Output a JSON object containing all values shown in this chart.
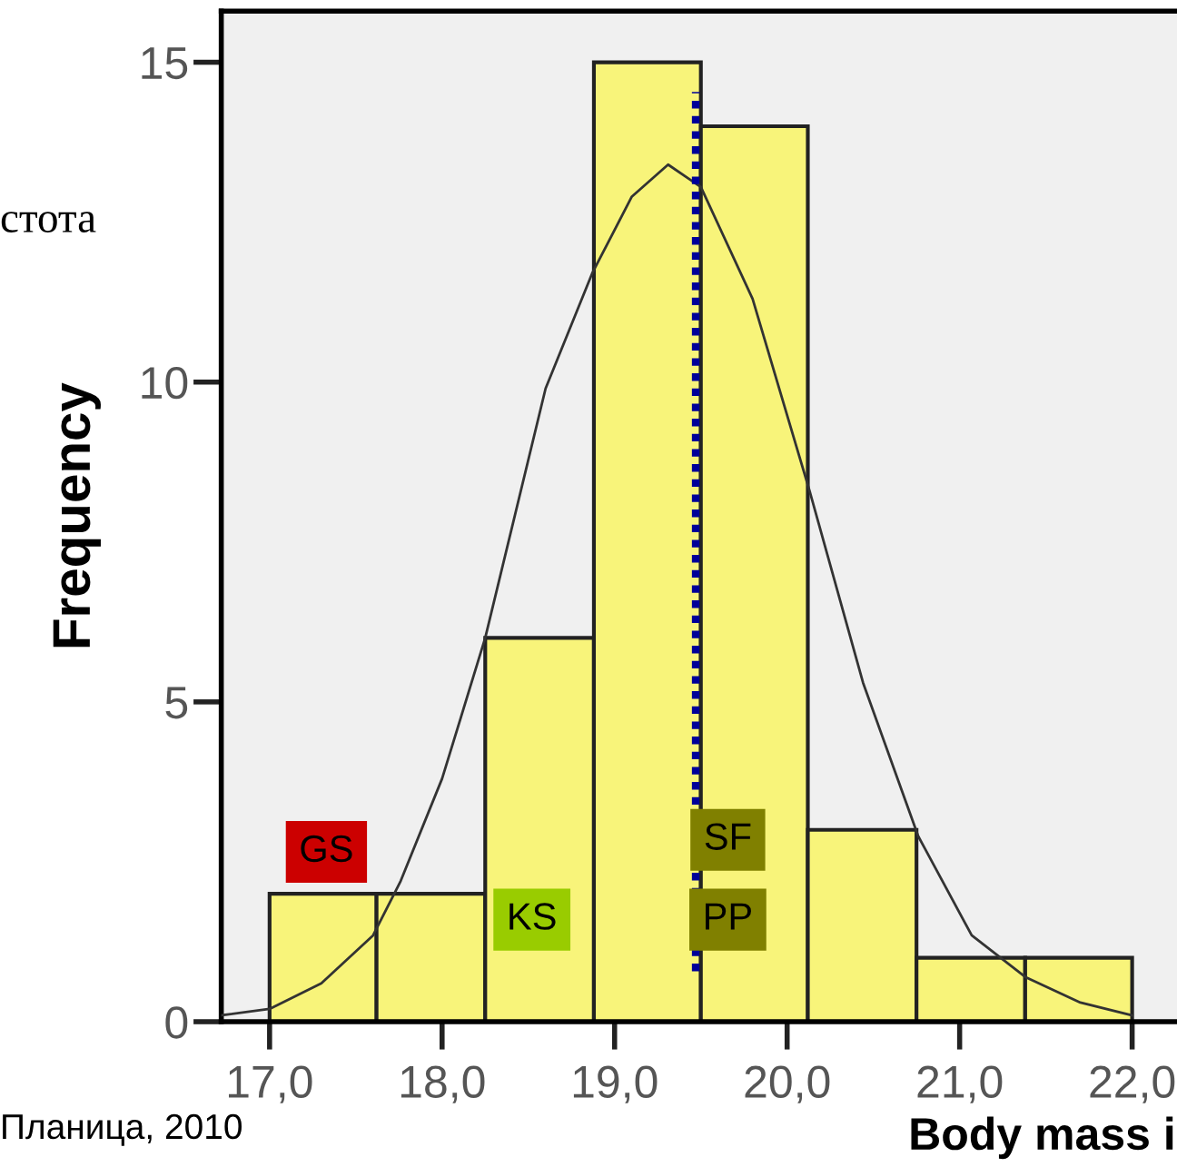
{
  "chart_data": {
    "type": "histogram",
    "bins": [
      17.0,
      17.62,
      18.25,
      18.88,
      19.5,
      20.12,
      20.75,
      21.38,
      22.0
    ],
    "values": [
      2,
      2,
      6,
      15,
      14,
      3,
      1,
      1
    ],
    "color": "#f8f47a",
    "series": [
      {
        "type": "line",
        "color": "#333333",
        "x": [
          16.72,
          17.0,
          17.3,
          17.6,
          17.76,
          18.0,
          18.25,
          18.6,
          18.87,
          19.1,
          19.31,
          19.5,
          19.8,
          20.13,
          20.44,
          20.76,
          21.07,
          21.38,
          21.7,
          22.0
        ],
        "values": [
          0.1,
          0.2,
          0.6,
          1.35,
          2.2,
          3.8,
          6.0,
          9.9,
          11.7,
          12.9,
          13.4,
          13.05,
          11.3,
          8.3,
          5.3,
          2.9,
          1.35,
          0.7,
          0.3,
          0.1
        ]
      }
    ],
    "ref_lines": [
      {
        "axis": "x",
        "value": 19.47,
        "color": "#000099",
        "line_style": "dotted"
      }
    ],
    "ylabel": "Frequency",
    "xlabel": "Body mass i",
    "annotations": [
      "GS",
      "KS",
      "SF",
      "PP",
      "стота",
      "Планица, 2010"
    ],
    "xlim": [
      16.72,
      22.26
    ],
    "ylim": [
      0,
      15.8
    ],
    "xticks": [
      {
        "value": 17,
        "label": "17,0"
      },
      {
        "value": 18,
        "label": "18,0"
      },
      {
        "value": 19,
        "label": "19,0"
      },
      {
        "value": 20,
        "label": "20,0"
      },
      {
        "value": 21,
        "label": "21,0"
      },
      {
        "value": 22,
        "label": "22,0"
      }
    ],
    "yticks": [
      0,
      5,
      10,
      15
    ],
    "grid": false
  }
}
